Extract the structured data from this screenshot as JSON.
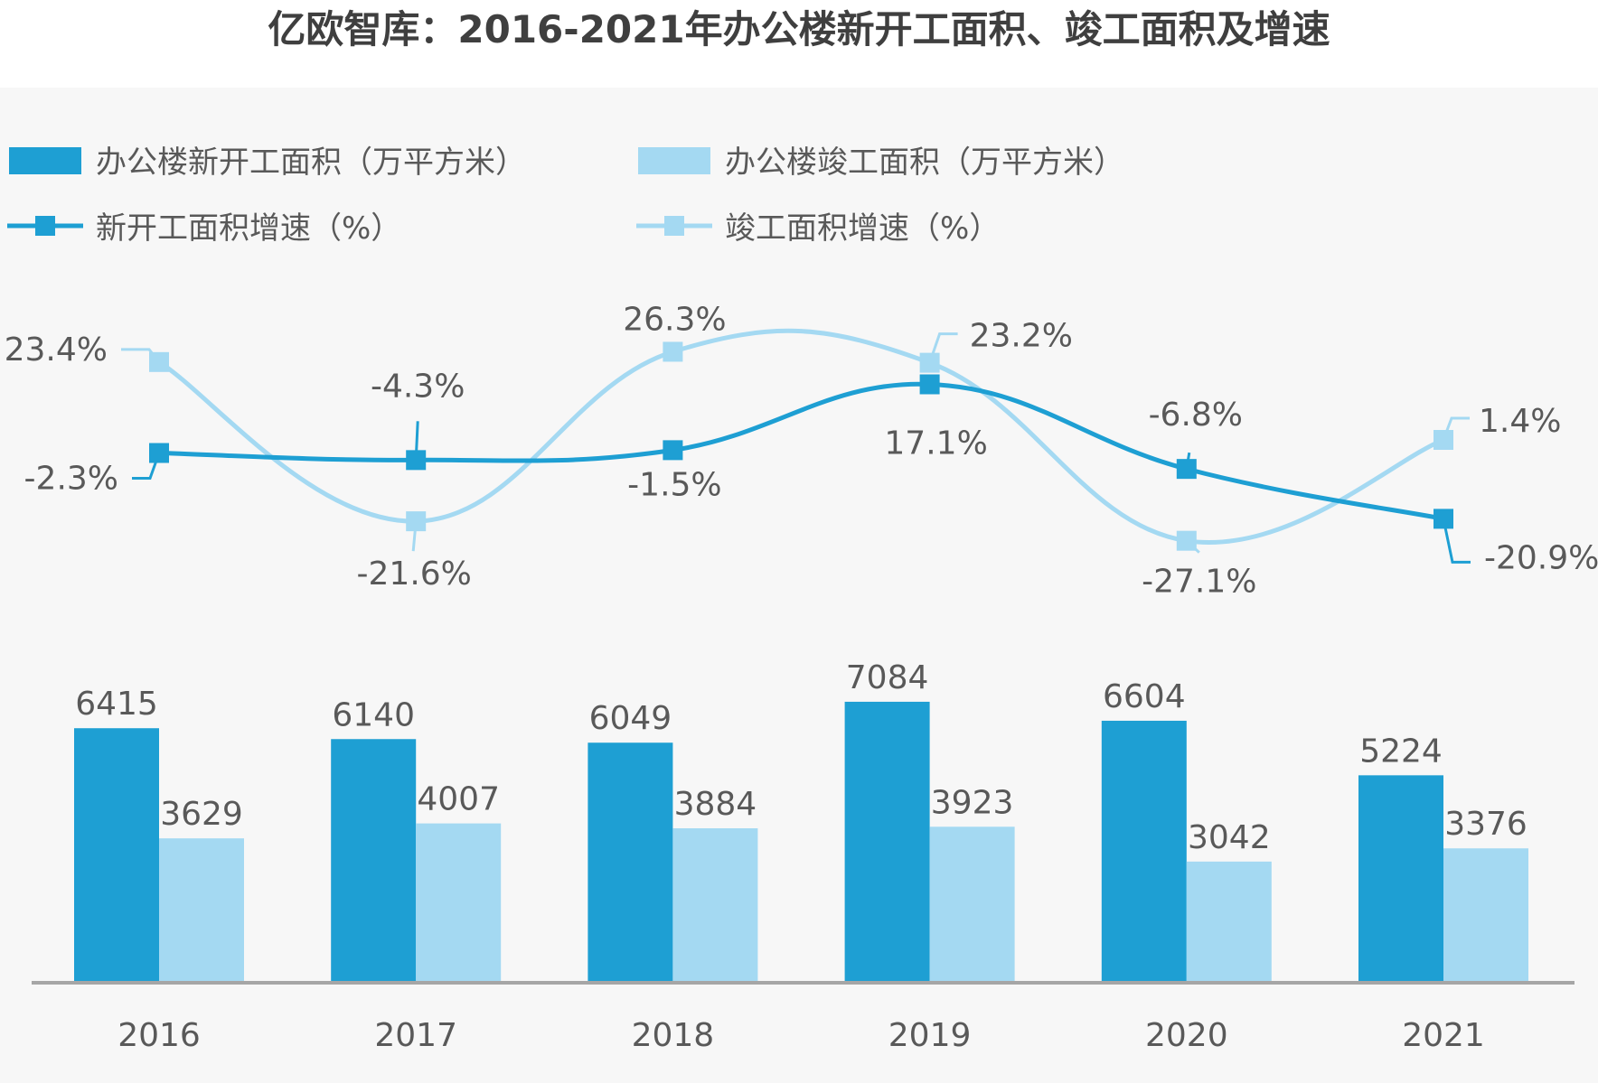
{
  "chart_data": {
    "type": "bar",
    "title": "亿欧智库：2016-2021年办公楼新开工面积、竣工面积及增速",
    "categories": [
      "2016",
      "2017",
      "2018",
      "2019",
      "2020",
      "2021"
    ],
    "bar_series": [
      {
        "name": "办公楼新开工面积（万平方米）",
        "color": "#1e9fd3",
        "values": [
          6415,
          6140,
          6049,
          7084,
          6604,
          5224
        ]
      },
      {
        "name": "办公楼竣工面积（万平方米）",
        "color": "#a4d9f2",
        "values": [
          3629,
          4007,
          3884,
          3923,
          3042,
          3376
        ]
      }
    ],
    "line_series": [
      {
        "name": "新开工面积增速（%）",
        "color": "#1e9fd3",
        "values": [
          -2.3,
          -4.3,
          -1.5,
          17.1,
          -6.8,
          -20.9
        ],
        "labels": [
          "-2.3%",
          "-4.3%",
          "-1.5%",
          "17.1%",
          "-6.8%",
          "-20.9%"
        ]
      },
      {
        "name": "竣工面积增速（%）",
        "color": "#a4d9f2",
        "values": [
          23.4,
          -21.6,
          26.3,
          23.2,
          -27.1,
          1.4
        ],
        "labels": [
          "23.4%",
          "-21.6%",
          "26.3%",
          "23.2%",
          "-27.1%",
          "1.4%"
        ]
      }
    ],
    "legend_position": "top-left",
    "grid": false
  }
}
